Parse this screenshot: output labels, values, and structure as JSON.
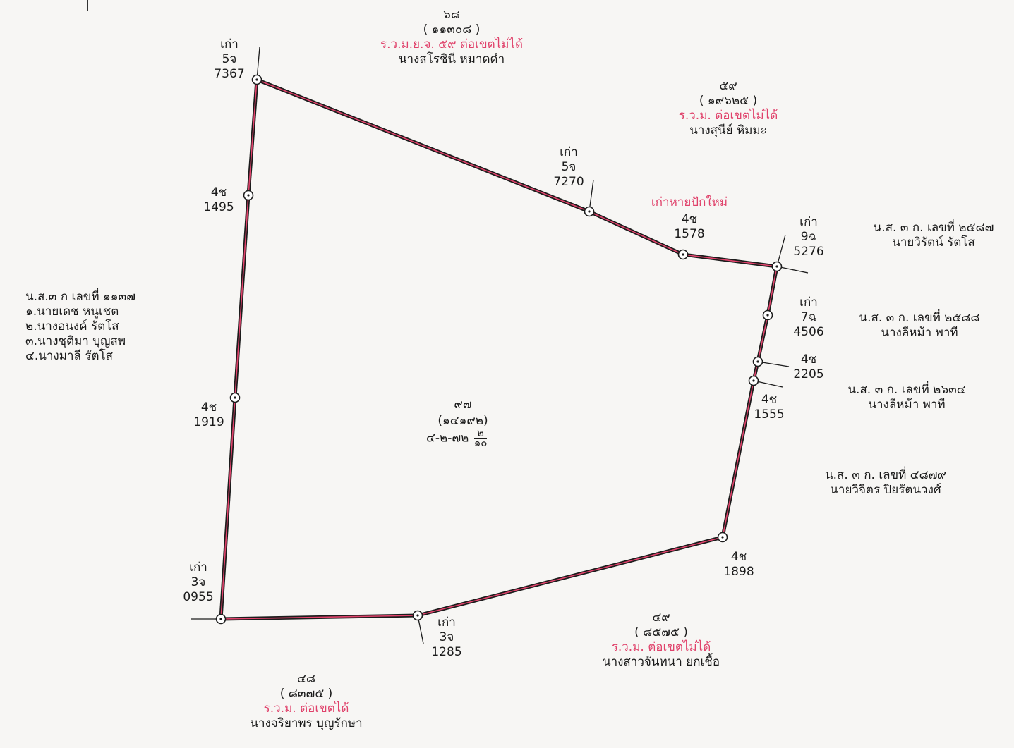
{
  "parcel": {
    "number": "๙๗",
    "survey_no": "(๑๔๑๙๒)",
    "area_main": "๔-๒-๗๒",
    "area_frac_num": "๒",
    "area_frac_den": "๑๐"
  },
  "markers": {
    "m7367": {
      "prefix": "เก่า",
      "code": "5จ",
      "num": "7367"
    },
    "m1495": {
      "code": "4ช",
      "num": "1495"
    },
    "m7270": {
      "prefix": "เก่า",
      "code": "5จ",
      "num": "7270"
    },
    "m1578": {
      "note": "เก่าหายปักใหม่",
      "code": "4ช",
      "num": "1578"
    },
    "m5276": {
      "prefix": "เก่า",
      "code": "9ฉ",
      "num": "5276"
    },
    "m4506": {
      "prefix": "เก่า",
      "code": "7ฉ",
      "num": "4506"
    },
    "m2205": {
      "code": "4ช",
      "num": "2205"
    },
    "m1555": {
      "code": "4ช",
      "num": "1555"
    },
    "m1919": {
      "code": "4ช",
      "num": "1919"
    },
    "m1898": {
      "code": "4ช",
      "num": "1898"
    },
    "m0955": {
      "prefix": "เก่า",
      "code": "3จ",
      "num": "0955"
    },
    "m1285": {
      "prefix": "เก่า",
      "code": "3จ",
      "num": "1285"
    }
  },
  "neighbors": {
    "north": {
      "num": "๖๘",
      "survey": "( ๑๑๓๐๘ )",
      "status": "ร.ว.ม.ย.จ. ๕๙ ต่อเขตไม่ได้",
      "owner": "นางสโรชินี หมาดดำ"
    },
    "northeast": {
      "num": "๕๙",
      "survey": "( ๑๙๖๒๕ )",
      "status": "ร.ว.ม. ต่อเขตไม่ได้",
      "owner": "นางสุนีย์ หิมมะ"
    },
    "east1": {
      "doc": "น.ส. ๓ ก. เลขที่ ๒๕๘๗",
      "owner": "นายวิรัตน์ รัตโส"
    },
    "east2": {
      "doc": "น.ส. ๓ ก. เลขที่ ๒๕๘๘",
      "owner": "นางลีหม้า พาที"
    },
    "east3": {
      "doc": "น.ส. ๓ ก. เลขที่ ๒๖๓๔",
      "owner": "นางลีหม้า พาที"
    },
    "east4": {
      "doc": "น.ส. ๓ ก. เลขที่ ๔๘๗๙",
      "owner": "นายวิจิตร ปิยรัตนวงศ์"
    },
    "west": {
      "doc": "น.ส.๓ ก เลขที่ ๑๑๓๗",
      "owners": [
        "๑.นายเดช หนูเชต",
        "๒.นางอนงค์ รัตโส",
        "๓.นางชุติมา บุญสพ",
        "๔.นางมาลี รัตโส"
      ]
    },
    "south": {
      "num": "๔๘",
      "survey": "( ๘๓๗๕ )",
      "status": "ร.ว.ม. ต่อเขตได้",
      "owner": "นางจริยาพร บุญรักษา"
    },
    "southeast": {
      "num": "๔๙",
      "survey": "( ๘๕๗๕ )",
      "status": "ร.ว.ม. ต่อเขตไม่ได้",
      "owner": "นางสาวจันทนา ยกเชื้อ"
    }
  },
  "colors": {
    "boundary": "#1c1c1c",
    "pink": "#e0426b",
    "text": "#1a1a1a"
  }
}
